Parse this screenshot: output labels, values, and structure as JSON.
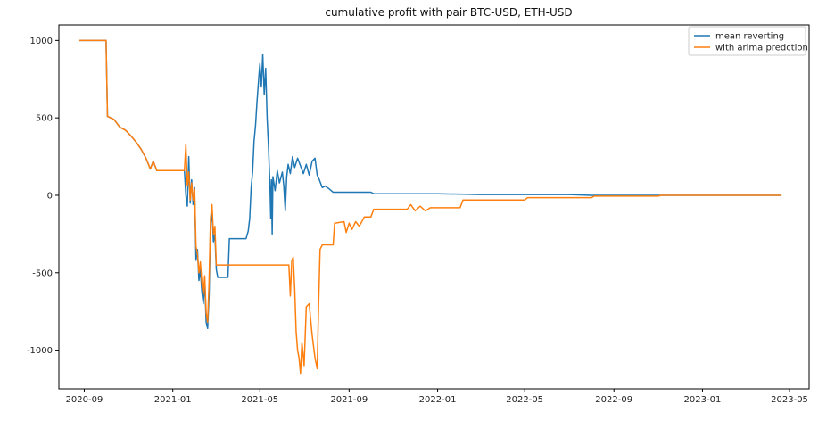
{
  "chart_data": {
    "type": "line",
    "title": "cumulative profit with pair BTC-USD, ETH-USD",
    "xlabel": "",
    "ylabel": "",
    "x_axis": {
      "type": "date",
      "range": [
        "2020-07-28",
        "2023-05-28"
      ],
      "ticks": [
        "2020-09",
        "2021-01",
        "2021-05",
        "2021-09",
        "2022-01",
        "2022-05",
        "2022-09",
        "2023-01",
        "2023-05"
      ]
    },
    "y_axis": {
      "range": [
        -1250,
        1100
      ],
      "ticks": [
        1000,
        500,
        0,
        -500,
        -1000
      ]
    },
    "grid": false,
    "legend_position": "top-right",
    "series": [
      {
        "name": "mean reverting",
        "color": "#1f77b4",
        "points": [
          [
            "2020-08-25",
            1000
          ],
          [
            "2020-10-01",
            1000
          ],
          [
            "2020-10-03",
            510
          ],
          [
            "2020-10-12",
            490
          ],
          [
            "2020-10-20",
            440
          ],
          [
            "2020-10-28",
            420
          ],
          [
            "2020-11-05",
            380
          ],
          [
            "2020-11-12",
            340
          ],
          [
            "2020-11-18",
            300
          ],
          [
            "2020-11-25",
            240
          ],
          [
            "2020-12-01",
            170
          ],
          [
            "2020-12-05",
            220
          ],
          [
            "2020-12-10",
            160
          ],
          [
            "2021-01-17",
            160
          ],
          [
            "2021-01-19",
            0
          ],
          [
            "2021-01-21",
            -70
          ],
          [
            "2021-01-23",
            250
          ],
          [
            "2021-01-25",
            -50
          ],
          [
            "2021-01-27",
            100
          ],
          [
            "2021-01-29",
            -60
          ],
          [
            "2021-01-31",
            50
          ],
          [
            "2021-02-02",
            -420
          ],
          [
            "2021-02-04",
            -350
          ],
          [
            "2021-02-06",
            -550
          ],
          [
            "2021-02-08",
            -480
          ],
          [
            "2021-02-10",
            -620
          ],
          [
            "2021-02-12",
            -700
          ],
          [
            "2021-02-14",
            -560
          ],
          [
            "2021-02-16",
            -820
          ],
          [
            "2021-02-18",
            -860
          ],
          [
            "2021-02-20",
            -650
          ],
          [
            "2021-02-22",
            -200
          ],
          [
            "2021-02-24",
            -100
          ],
          [
            "2021-02-26",
            -300
          ],
          [
            "2021-02-28",
            -250
          ],
          [
            "2021-03-02",
            -480
          ],
          [
            "2021-03-04",
            -530
          ],
          [
            "2021-03-18",
            -530
          ],
          [
            "2021-03-20",
            -280
          ],
          [
            "2021-04-12",
            -280
          ],
          [
            "2021-04-15",
            -230
          ],
          [
            "2021-04-17",
            -150
          ],
          [
            "2021-04-19",
            50
          ],
          [
            "2021-04-21",
            150
          ],
          [
            "2021-04-23",
            350
          ],
          [
            "2021-04-25",
            450
          ],
          [
            "2021-04-27",
            600
          ],
          [
            "2021-04-29",
            730
          ],
          [
            "2021-05-01",
            850
          ],
          [
            "2021-05-03",
            700
          ],
          [
            "2021-05-05",
            910
          ],
          [
            "2021-05-07",
            650
          ],
          [
            "2021-05-09",
            820
          ],
          [
            "2021-05-11",
            500
          ],
          [
            "2021-05-13",
            300
          ],
          [
            "2021-05-15",
            50
          ],
          [
            "2021-05-16",
            -150
          ],
          [
            "2021-05-17",
            100
          ],
          [
            "2021-05-18",
            -250
          ],
          [
            "2021-05-19",
            120
          ],
          [
            "2021-05-22",
            30
          ],
          [
            "2021-05-25",
            160
          ],
          [
            "2021-05-28",
            80
          ],
          [
            "2021-06-01",
            150
          ],
          [
            "2021-06-03",
            60
          ],
          [
            "2021-06-05",
            -100
          ],
          [
            "2021-06-07",
            120
          ],
          [
            "2021-06-09",
            200
          ],
          [
            "2021-06-12",
            140
          ],
          [
            "2021-06-15",
            250
          ],
          [
            "2021-06-18",
            180
          ],
          [
            "2021-06-22",
            240
          ],
          [
            "2021-06-26",
            190
          ],
          [
            "2021-06-30",
            140
          ],
          [
            "2021-07-04",
            200
          ],
          [
            "2021-07-08",
            130
          ],
          [
            "2021-07-12",
            220
          ],
          [
            "2021-07-16",
            240
          ],
          [
            "2021-07-19",
            130
          ],
          [
            "2021-07-22",
            100
          ],
          [
            "2021-07-26",
            50
          ],
          [
            "2021-07-30",
            60
          ],
          [
            "2021-08-05",
            40
          ],
          [
            "2021-08-10",
            20
          ],
          [
            "2021-09-10",
            20
          ],
          [
            "2021-10-01",
            20
          ],
          [
            "2021-10-05",
            10
          ],
          [
            "2022-01-01",
            10
          ],
          [
            "2022-03-01",
            5
          ],
          [
            "2022-07-01",
            5
          ],
          [
            "2022-08-01",
            0
          ],
          [
            "2023-04-20",
            0
          ]
        ]
      },
      {
        "name": "with arima predction",
        "color": "#ff7f0e",
        "points": [
          [
            "2020-08-25",
            1000
          ],
          [
            "2020-10-01",
            1000
          ],
          [
            "2020-10-03",
            510
          ],
          [
            "2020-10-12",
            490
          ],
          [
            "2020-10-20",
            440
          ],
          [
            "2020-10-28",
            420
          ],
          [
            "2020-11-05",
            380
          ],
          [
            "2020-11-12",
            340
          ],
          [
            "2020-11-18",
            300
          ],
          [
            "2020-11-25",
            240
          ],
          [
            "2020-12-01",
            170
          ],
          [
            "2020-12-05",
            220
          ],
          [
            "2020-12-10",
            160
          ],
          [
            "2021-01-17",
            160
          ],
          [
            "2021-01-19",
            330
          ],
          [
            "2021-01-21",
            60
          ],
          [
            "2021-01-23",
            150
          ],
          [
            "2021-01-25",
            -30
          ],
          [
            "2021-01-27",
            80
          ],
          [
            "2021-01-29",
            -30
          ],
          [
            "2021-01-31",
            40
          ],
          [
            "2021-02-02",
            -330
          ],
          [
            "2021-02-04",
            -380
          ],
          [
            "2021-02-06",
            -500
          ],
          [
            "2021-02-08",
            -430
          ],
          [
            "2021-02-10",
            -560
          ],
          [
            "2021-02-12",
            -640
          ],
          [
            "2021-02-14",
            -520
          ],
          [
            "2021-02-16",
            -760
          ],
          [
            "2021-02-18",
            -820
          ],
          [
            "2021-02-20",
            -560
          ],
          [
            "2021-02-22",
            -150
          ],
          [
            "2021-02-24",
            -60
          ],
          [
            "2021-02-26",
            -250
          ],
          [
            "2021-02-28",
            -200
          ],
          [
            "2021-03-02",
            -450
          ],
          [
            "2021-06-10",
            -450
          ],
          [
            "2021-06-12",
            -650
          ],
          [
            "2021-06-14",
            -420
          ],
          [
            "2021-06-16",
            -400
          ],
          [
            "2021-06-18",
            -600
          ],
          [
            "2021-06-20",
            -880
          ],
          [
            "2021-06-22",
            -1000
          ],
          [
            "2021-06-24",
            -1050
          ],
          [
            "2021-06-26",
            -1150
          ],
          [
            "2021-06-28",
            -950
          ],
          [
            "2021-07-01",
            -1100
          ],
          [
            "2021-07-04",
            -720
          ],
          [
            "2021-07-08",
            -700
          ],
          [
            "2021-07-12",
            -900
          ],
          [
            "2021-07-16",
            -1050
          ],
          [
            "2021-07-19",
            -1120
          ],
          [
            "2021-07-21",
            -700
          ],
          [
            "2021-07-23",
            -350
          ],
          [
            "2021-07-26",
            -320
          ],
          [
            "2021-08-10",
            -320
          ],
          [
            "2021-08-12",
            -180
          ],
          [
            "2021-08-25",
            -170
          ],
          [
            "2021-08-28",
            -240
          ],
          [
            "2021-09-01",
            -180
          ],
          [
            "2021-09-05",
            -220
          ],
          [
            "2021-09-10",
            -170
          ],
          [
            "2021-09-15",
            -200
          ],
          [
            "2021-09-22",
            -140
          ],
          [
            "2021-10-01",
            -140
          ],
          [
            "2021-10-05",
            -90
          ],
          [
            "2021-11-20",
            -90
          ],
          [
            "2021-11-25",
            -60
          ],
          [
            "2021-12-01",
            -100
          ],
          [
            "2021-12-08",
            -70
          ],
          [
            "2021-12-15",
            -100
          ],
          [
            "2021-12-22",
            -80
          ],
          [
            "2022-02-01",
            -80
          ],
          [
            "2022-02-05",
            -30
          ],
          [
            "2022-05-01",
            -30
          ],
          [
            "2022-05-05",
            -15
          ],
          [
            "2022-08-01",
            -15
          ],
          [
            "2022-08-05",
            -5
          ],
          [
            "2022-11-01",
            -5
          ],
          [
            "2022-11-05",
            0
          ],
          [
            "2023-04-20",
            0
          ]
        ]
      }
    ]
  }
}
